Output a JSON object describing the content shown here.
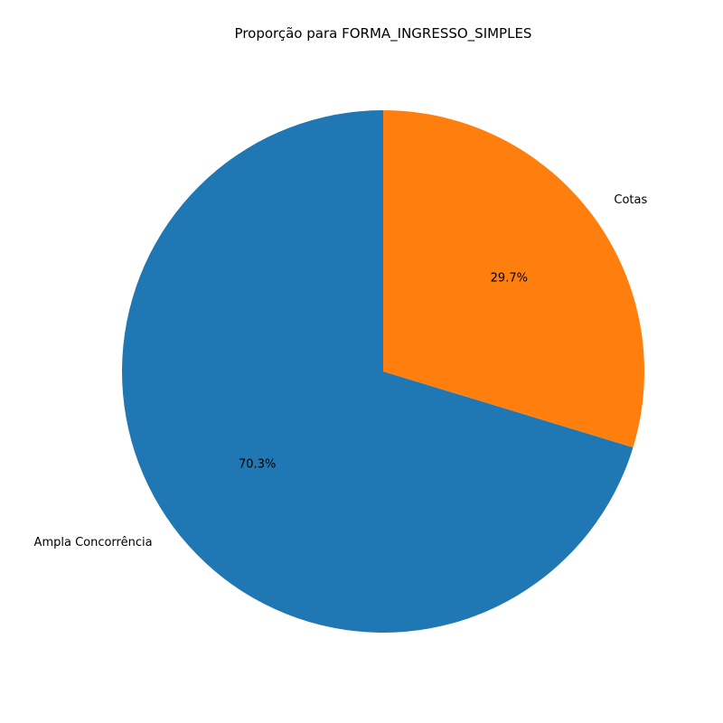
{
  "chart_data": {
    "type": "pie",
    "title": "Proporção para FORMA_INGRESSO_SIMPLES",
    "categories": [
      "Ampla Concorrência",
      "Cotas"
    ],
    "values": [
      70.3,
      29.7
    ],
    "value_labels": [
      "70.3%",
      "29.7%"
    ],
    "colors": [
      "#1f77b4",
      "#ff7f0e"
    ],
    "start_angle_deg": 90,
    "direction": "counterclockwise",
    "legend": "none"
  }
}
